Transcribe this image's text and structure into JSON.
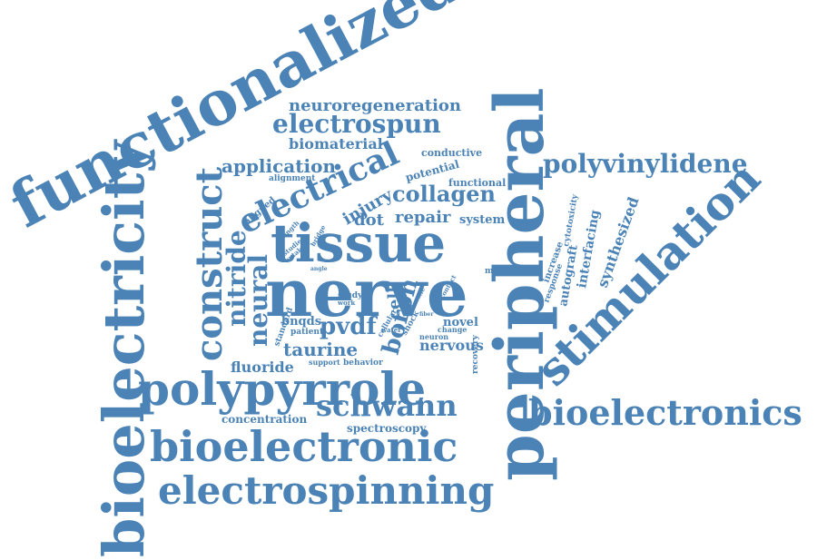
{
  "color": "#4b83b6",
  "words": [
    {
      "id": "functionalized",
      "text": "functionalized"
    },
    {
      "id": "peripheral",
      "text": "peripheral"
    },
    {
      "id": "nerve",
      "text": "nerve"
    },
    {
      "id": "tissue",
      "text": "tissue"
    },
    {
      "id": "bioelectricity",
      "text": "bioelectricity"
    },
    {
      "id": "stimulation",
      "text": "stimulation"
    },
    {
      "id": "polypyrrole",
      "text": "polypyrrole"
    },
    {
      "id": "bioelectronic",
      "text": "bioelectronic"
    },
    {
      "id": "bioelectronics",
      "text": "bioelectronics"
    },
    {
      "id": "electrospinning",
      "text": "electrospinning"
    },
    {
      "id": "construct",
      "text": "construct"
    },
    {
      "id": "electrical",
      "text": "electrical"
    },
    {
      "id": "polyvinylidene",
      "text": "polyvinylidene"
    },
    {
      "id": "schwann",
      "text": "schwann"
    },
    {
      "id": "electrospun",
      "text": "electrospun"
    },
    {
      "id": "neuroregeneration",
      "text": "neuroregeneration"
    },
    {
      "id": "collagen",
      "text": "collagen"
    },
    {
      "id": "neural",
      "text": "neural"
    },
    {
      "id": "nitride",
      "text": "nitride"
    },
    {
      "id": "boron",
      "text": "boron"
    },
    {
      "id": "application",
      "text": "application"
    },
    {
      "id": "biomaterial",
      "text": "biomaterial"
    },
    {
      "id": "taurine",
      "text": "taurine"
    },
    {
      "id": "pvdf",
      "text": "pvdf"
    },
    {
      "id": "repair",
      "text": "repair"
    },
    {
      "id": "injury",
      "text": "injury"
    },
    {
      "id": "dot",
      "text": "dot"
    },
    {
      "id": "system",
      "text": "system"
    },
    {
      "id": "synthesized",
      "text": "synthesized"
    },
    {
      "id": "interfacing",
      "text": "interfacing"
    },
    {
      "id": "autograft",
      "text": "autograft"
    },
    {
      "id": "fluoride",
      "text": "fluoride"
    },
    {
      "id": "nervous",
      "text": "nervous"
    },
    {
      "id": "concentration",
      "text": "concentration"
    },
    {
      "id": "spectroscopy",
      "text": "spectroscopy"
    },
    {
      "id": "bnqds",
      "text": "bnqds"
    },
    {
      "id": "novel",
      "text": "novel"
    },
    {
      "id": "cell",
      "text": "cell"
    },
    {
      "id": "potential",
      "text": "potential"
    },
    {
      "id": "conductive",
      "text": "conductive"
    },
    {
      "id": "functional",
      "text": "functional"
    },
    {
      "id": "alignment",
      "text": "alignment"
    },
    {
      "id": "aligned",
      "text": "aligned"
    },
    {
      "id": "increase",
      "text": "increase"
    },
    {
      "id": "cytotoxicity",
      "text": "cytotoxicity"
    },
    {
      "id": "response",
      "text": "response"
    },
    {
      "id": "material",
      "text": "material"
    },
    {
      "id": "recovery",
      "text": "recovery"
    },
    {
      "id": "support",
      "text": "support"
    },
    {
      "id": "behavior",
      "text": "behavior"
    },
    {
      "id": "patient",
      "text": "patient"
    },
    {
      "id": "standard",
      "text": "standard"
    },
    {
      "id": "study",
      "text": "study"
    },
    {
      "id": "work",
      "text": "work"
    },
    {
      "id": "cellular",
      "text": "cellular"
    },
    {
      "id": "shock",
      "text": "shock"
    },
    {
      "id": "water",
      "text": "water"
    },
    {
      "id": "change",
      "text": "change"
    },
    {
      "id": "neuron",
      "text": "neuron"
    },
    {
      "id": "tactile",
      "text": "tactile"
    },
    {
      "id": "fiber",
      "text": "fiber"
    },
    {
      "id": "contact",
      "text": "contact"
    },
    {
      "id": "length",
      "text": "length"
    },
    {
      "id": "uptake",
      "text": "uptake"
    },
    {
      "id": "studies",
      "text": "studies"
    },
    {
      "id": "bridge",
      "text": "bridge"
    },
    {
      "id": "angle",
      "text": "angle"
    }
  ]
}
